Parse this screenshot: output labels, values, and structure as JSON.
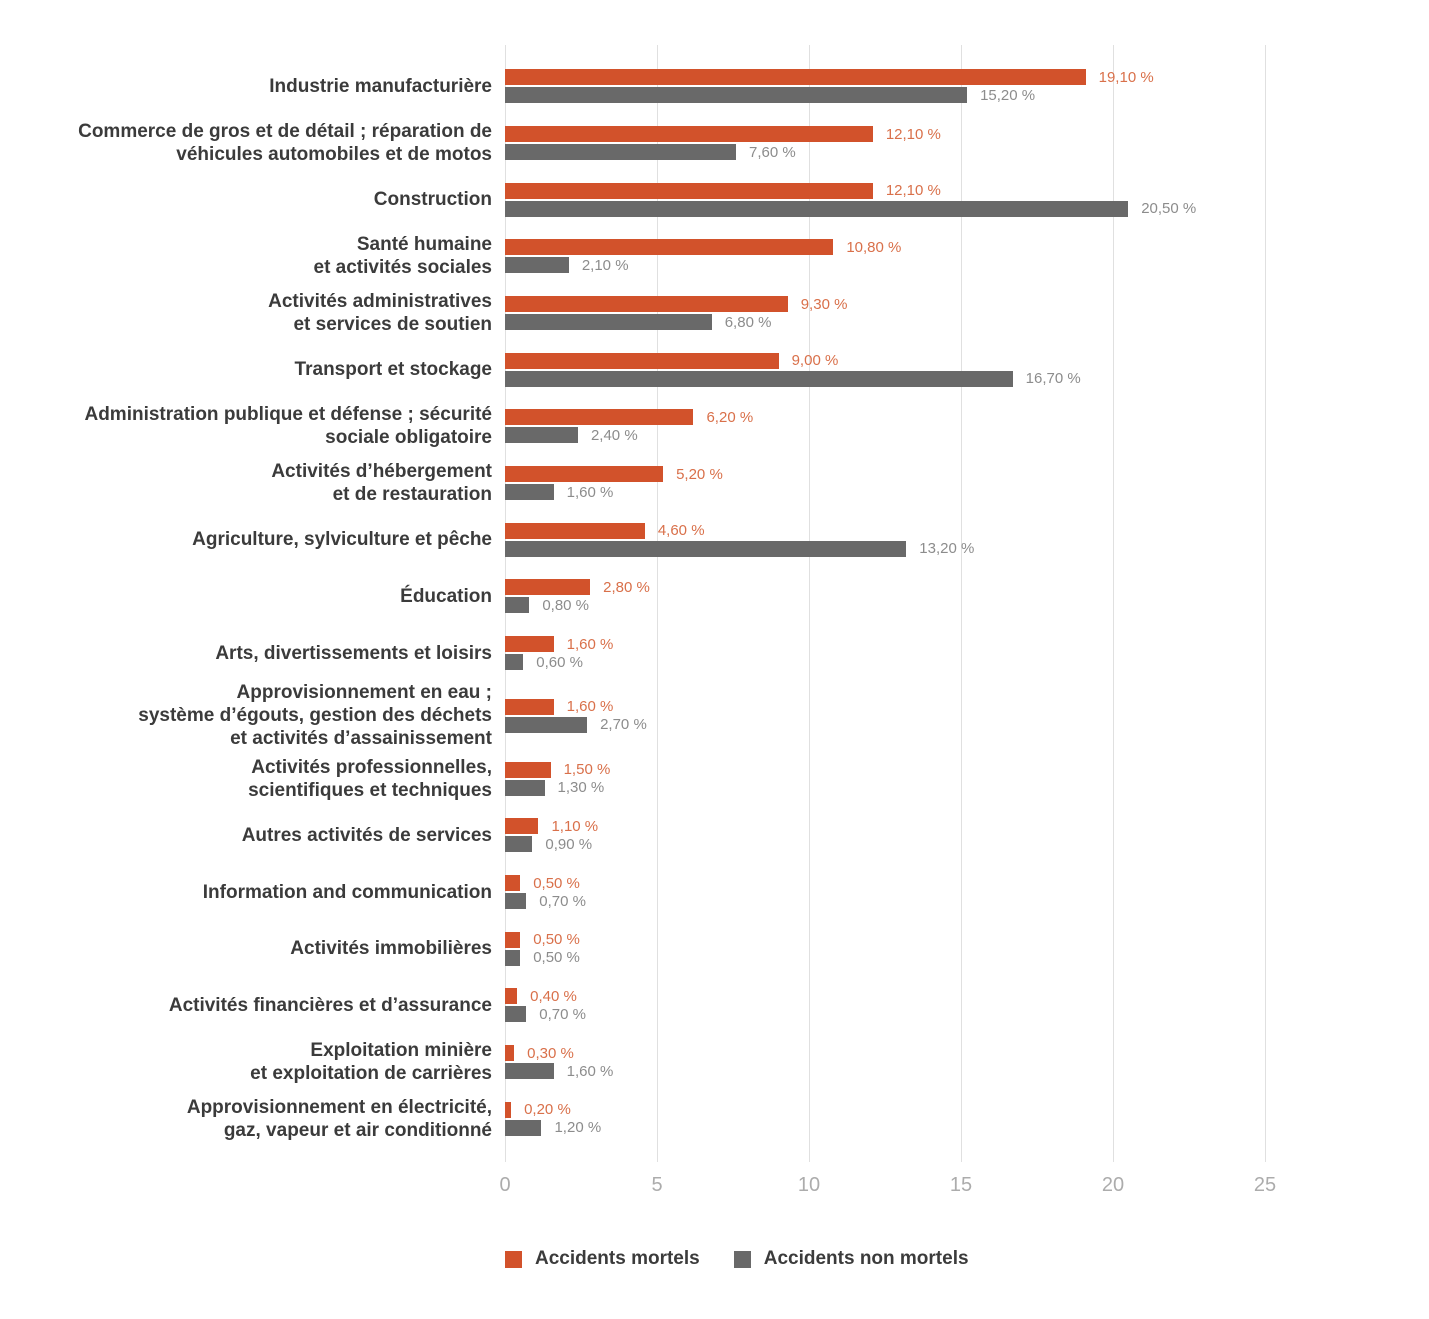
{
  "colors": {
    "mortels_bar": "#D2522B",
    "non_mortels_bar": "#696969",
    "mortels_value_label": "#D9704A",
    "non_mortels_value_label": "#8C8C8C",
    "category_text": "#3B3B3B",
    "tick_text": "#ACACAC",
    "gridline": "#E0E0E0"
  },
  "chart_data": {
    "type": "bar",
    "orientation": "horizontal",
    "title": "",
    "xlabel": "",
    "ylabel": "",
    "xlim": [
      0,
      25
    ],
    "xticks": [
      0,
      5,
      10,
      15,
      20,
      25
    ],
    "grid": true,
    "legend_position": "bottom",
    "value_suffix": " %",
    "categories": [
      [
        "Industrie manufacturière"
      ],
      [
        "Commerce de gros et de détail ; réparation de",
        "véhicules automobiles et de motos"
      ],
      [
        "Construction"
      ],
      [
        "Santé humaine",
        "et activités sociales"
      ],
      [
        "Activités administratives",
        "et services de soutien"
      ],
      [
        "Transport et stockage"
      ],
      [
        "Administration publique et défense ; sécurité",
        "sociale obligatoire"
      ],
      [
        "Activités d’hébergement",
        "et de restauration"
      ],
      [
        "Agriculture, sylviculture et pêche"
      ],
      [
        "Éducation"
      ],
      [
        "Arts, divertissements et loisirs"
      ],
      [
        "Approvisionnement en eau ;",
        "système d’égouts, gestion des déchets",
        "et activités d’assainissement"
      ],
      [
        "Activités professionnelles,",
        "scientifiques et techniques"
      ],
      [
        "Autres activités de services"
      ],
      [
        "Information and communication"
      ],
      [
        "Activités immobilières"
      ],
      [
        "Activités financières et d’assurance"
      ],
      [
        "Exploitation minière",
        "et exploitation de carrières"
      ],
      [
        "Approvisionnement en électricité,",
        "gaz, vapeur et air conditionné"
      ]
    ],
    "series": [
      {
        "name": "Accidents mortels",
        "color": "#D2522B",
        "values": [
          19.1,
          12.1,
          12.1,
          10.8,
          9.3,
          9.0,
          6.2,
          5.2,
          4.6,
          2.8,
          1.6,
          1.6,
          1.5,
          1.1,
          0.5,
          0.5,
          0.4,
          0.3,
          0.2
        ],
        "value_labels": [
          "19,10 %",
          "12,10 %",
          "12,10 %",
          "10,80 %",
          "9,30 %",
          "9,00 %",
          "6,20 %",
          "5,20 %",
          "4,60 %",
          "2,80 %",
          "1,60 %",
          "1,60 %",
          "1,50 %",
          "1,10 %",
          "0,50 %",
          "0,50 %",
          "0,40 %",
          "0,30 %",
          "0,20 %"
        ]
      },
      {
        "name": "Accidents non mortels",
        "color": "#696969",
        "values": [
          15.2,
          7.6,
          20.5,
          2.1,
          6.8,
          16.7,
          2.4,
          1.6,
          13.2,
          0.8,
          0.6,
          2.7,
          1.3,
          0.9,
          0.7,
          0.5,
          0.7,
          1.6,
          1.2
        ],
        "value_labels": [
          "15,20 %",
          "7,60 %",
          "20,50 %",
          "2,10 %",
          "6,80 %",
          "16,70 %",
          "2,40 %",
          "1,60 %",
          "13,20 %",
          "0,80 %",
          "0,60 %",
          "2,70 %",
          "1,30 %",
          "0,90 %",
          "0,70 %",
          "0,50 %",
          "0,70 %",
          "1,60 %",
          "1,20 %"
        ]
      }
    ]
  }
}
